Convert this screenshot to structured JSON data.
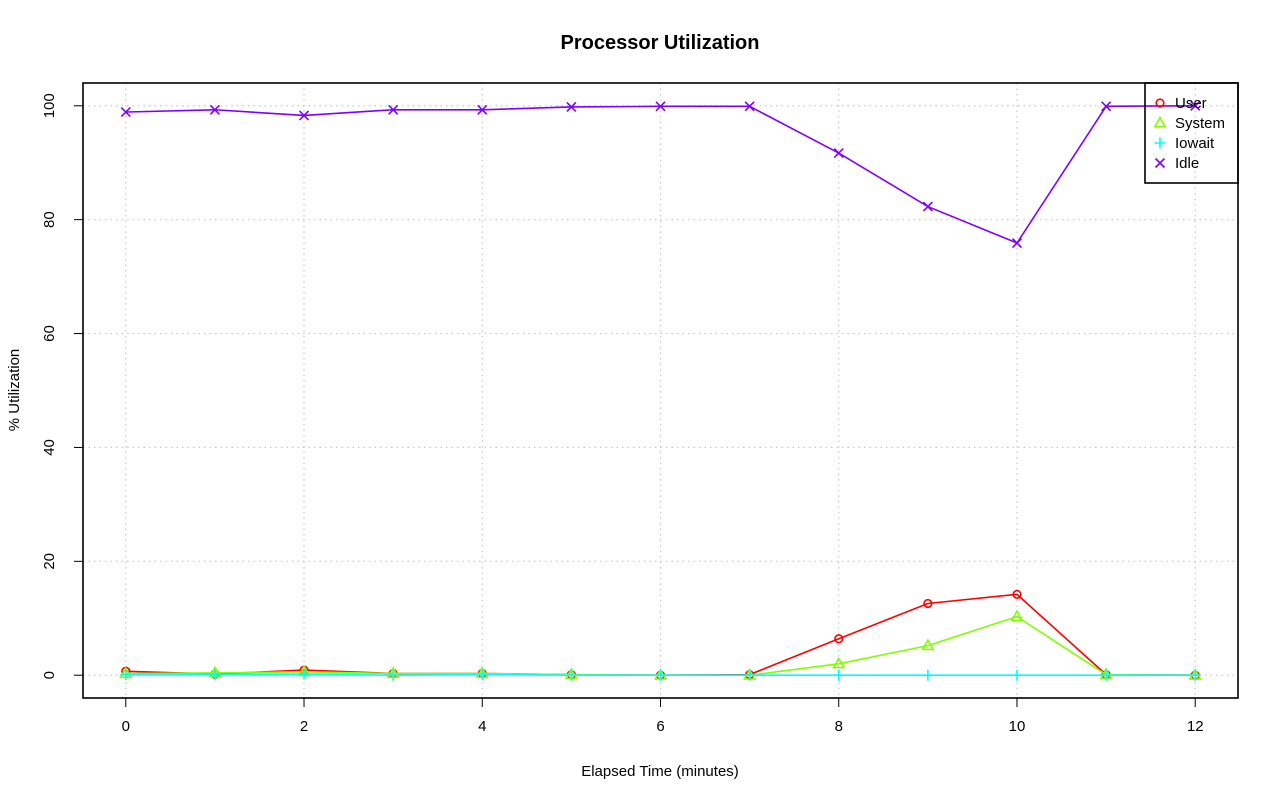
{
  "chart_data": {
    "type": "line",
    "title": "Processor Utilization",
    "xlabel": "Elapsed Time (minutes)",
    "ylabel": "% Utilization",
    "xlim": [
      -0.48,
      12.48
    ],
    "ylim": [
      -4,
      104
    ],
    "x_ticks": [
      0,
      2,
      4,
      6,
      8,
      10,
      12
    ],
    "y_ticks": [
      0,
      20,
      40,
      60,
      80,
      100
    ],
    "grid": true,
    "legend_position": "top-right",
    "x": [
      0,
      1,
      2,
      3,
      4,
      5,
      6,
      7,
      8,
      9,
      10,
      11,
      12
    ],
    "series": [
      {
        "name": "User",
        "color": "#ff0000",
        "marker": "circle",
        "values": [
          0.7,
          0.2,
          0.9,
          0.3,
          0.3,
          0.1,
          0.0,
          0.1,
          6.4,
          12.6,
          14.2,
          0.1,
          0.0
        ]
      },
      {
        "name": "System",
        "color": "#80ff00",
        "marker": "triangle",
        "values": [
          0.3,
          0.4,
          0.6,
          0.3,
          0.3,
          0.1,
          0.0,
          0.0,
          2.0,
          5.2,
          10.3,
          0.1,
          0.0
        ]
      },
      {
        "name": "Iowait",
        "color": "#00ffff",
        "marker": "plus",
        "values": [
          0.1,
          0.1,
          0.2,
          0.0,
          0.1,
          0.0,
          0.0,
          0.0,
          0.0,
          0.0,
          0.0,
          0.0,
          0.0
        ]
      },
      {
        "name": "Idle",
        "color": "#8000ff",
        "marker": "cross",
        "values": [
          98.9,
          99.3,
          98.3,
          99.3,
          99.3,
          99.8,
          99.9,
          99.9,
          91.7,
          82.3,
          75.9,
          99.9,
          100.0
        ]
      }
    ]
  }
}
